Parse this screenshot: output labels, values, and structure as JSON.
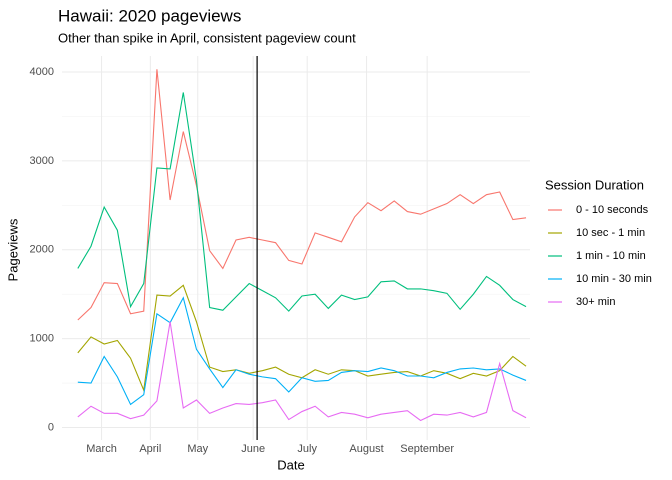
{
  "chart_data": {
    "type": "line",
    "title": "Hawaii: 2020 pageviews",
    "subtitle": "Other than spike in April, consistent pageview count",
    "x_label": "Date",
    "y_label": "Pageviews",
    "legend_title": "Session Duration",
    "legend_position": "right",
    "categories": [
      null,
      null,
      null,
      null,
      null,
      null,
      null,
      null,
      null,
      null,
      null,
      null,
      null,
      null,
      null,
      null,
      null,
      null,
      null,
      null,
      null,
      null,
      null,
      null,
      null,
      null,
      null,
      null,
      null,
      null,
      null,
      null,
      null,
      null,
      null
    ],
    "xlim": [
      -1.2,
      34.3
    ],
    "xticks": [
      {
        "value": 1.8,
        "label": "March"
      },
      {
        "value": 5.5,
        "label": "April"
      },
      {
        "value": 9.1,
        "label": "May"
      },
      {
        "value": 13.3,
        "label": "June"
      },
      {
        "value": 17.4,
        "label": "July"
      },
      {
        "value": 21.9,
        "label": "August"
      },
      {
        "value": 26.5,
        "label": "September"
      }
    ],
    "vline": 13.6,
    "ylim": [
      -140,
      4180
    ],
    "yticks": [
      0,
      1000,
      2000,
      3000,
      4000
    ],
    "grid": true,
    "series": [
      {
        "name": "0 - 10 seconds",
        "color": "#F8766D",
        "values": [
          1210,
          1350,
          1630,
          1620,
          1280,
          1310,
          4030,
          2560,
          3330,
          2720,
          1990,
          1790,
          2110,
          2140,
          2110,
          2080,
          1880,
          1840,
          2190,
          2140,
          2090,
          2370,
          2530,
          2440,
          2550,
          2430,
          2400,
          2460,
          2520,
          2620,
          2520,
          2620,
          2650,
          2340,
          2360
        ]
      },
      {
        "name": "10 sec - 1 min",
        "color": "#A3A500",
        "values": [
          840,
          1020,
          940,
          980,
          780,
          420,
          1490,
          1480,
          1600,
          1190,
          680,
          630,
          650,
          610,
          640,
          680,
          600,
          560,
          650,
          600,
          650,
          640,
          580,
          600,
          620,
          630,
          580,
          640,
          610,
          550,
          610,
          580,
          640,
          800,
          690
        ]
      },
      {
        "name": "1 min - 10 min",
        "color": "#00BF7D",
        "values": [
          1790,
          2040,
          2480,
          2220,
          1360,
          1620,
          2920,
          2910,
          3770,
          2780,
          1350,
          1320,
          1470,
          1620,
          1540,
          1460,
          1310,
          1480,
          1500,
          1340,
          1490,
          1440,
          1470,
          1640,
          1650,
          1560,
          1560,
          1540,
          1510,
          1330,
          1500,
          1700,
          1600,
          1440,
          1360
        ]
      },
      {
        "name": "10 min - 30 min",
        "color": "#00B0F6",
        "values": [
          510,
          500,
          800,
          570,
          260,
          370,
          1280,
          1180,
          1460,
          880,
          660,
          450,
          650,
          600,
          570,
          550,
          400,
          560,
          520,
          530,
          620,
          640,
          630,
          670,
          640,
          580,
          580,
          560,
          620,
          660,
          670,
          650,
          660,
          590,
          530
        ]
      },
      {
        "name": "30+ min",
        "color": "#E76BF3",
        "values": [
          120,
          240,
          160,
          160,
          100,
          140,
          300,
          1190,
          220,
          310,
          160,
          220,
          270,
          260,
          280,
          310,
          90,
          180,
          240,
          120,
          170,
          150,
          110,
          150,
          170,
          190,
          80,
          150,
          140,
          170,
          120,
          170,
          720,
          190,
          110
        ]
      }
    ]
  }
}
